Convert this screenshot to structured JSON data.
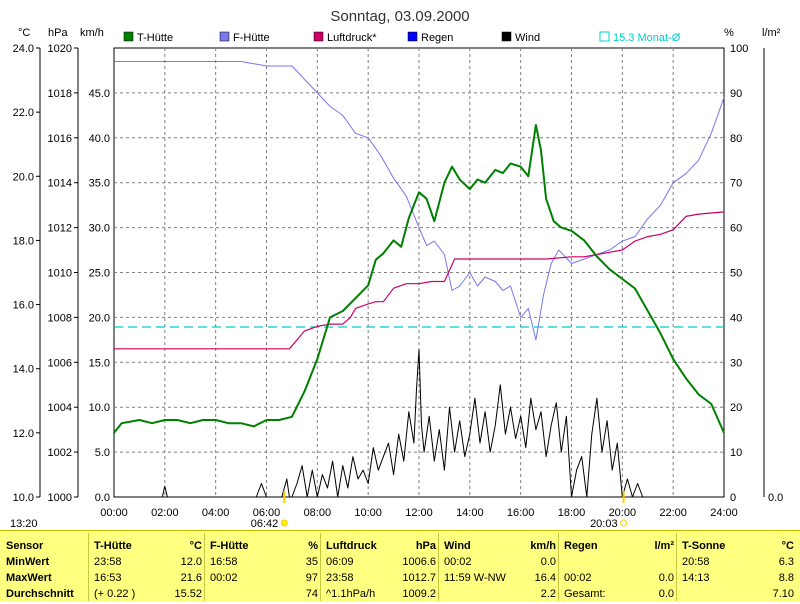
{
  "title": "Sonntag, 03.09.2000",
  "time_label": "13:20",
  "axis_units": {
    "temp": "°C",
    "pressure": "hPa",
    "wind": "km/h",
    "humidity": "%",
    "rain": "l/m²"
  },
  "legend": [
    {
      "label": "T-Hütte",
      "color": "#008000"
    },
    {
      "label": "F-Hütte",
      "color": "#7777ee"
    },
    {
      "label": "Luftdruck*",
      "color": "#cc0066"
    },
    {
      "label": "Regen",
      "color": "#0000ff"
    },
    {
      "label": "Wind",
      "color": "#000000"
    },
    {
      "label": "15.3 Monat-Ø",
      "color": "#00cccc"
    }
  ],
  "sun_events": [
    {
      "time": "06:42",
      "hour": 6.7
    },
    {
      "time": "20:03",
      "hour": 20.05
    }
  ],
  "chart_data": {
    "type": "line",
    "title": "Sonntag, 03.09.2000",
    "x_ticks": [
      "00:00",
      "02:00",
      "04:00",
      "06:00",
      "08:00",
      "10:00",
      "12:00",
      "14:00",
      "16:00",
      "18:00",
      "20:00",
      "22:00",
      "24:00"
    ],
    "xlim": [
      0,
      24
    ],
    "axes": {
      "temp_c": {
        "ticks": [
          "24.0",
          "22.0",
          "20.0",
          "18.0",
          "16.0",
          "14.0",
          "12.0",
          "10.0"
        ],
        "ylim": [
          10,
          24
        ]
      },
      "pressure_hpa": {
        "ticks": [
          "1020",
          "1018",
          "1016",
          "1014",
          "1012",
          "1010",
          "1008",
          "1006",
          "1004",
          "1002",
          "1000"
        ],
        "ylim": [
          1000,
          1020
        ]
      },
      "wind_kmh": {
        "ticks": [
          "45.0",
          "40.0",
          "35.0",
          "30.0",
          "25.0",
          "20.0",
          "15.0",
          "10.0",
          "5.0",
          "0.0"
        ],
        "ylim": [
          0,
          50
        ]
      },
      "humidity_pct": {
        "ticks": [
          "100",
          "90",
          "80",
          "70",
          "60",
          "50",
          "40",
          "30",
          "20",
          "10",
          "0"
        ],
        "ylim": [
          0,
          100
        ]
      },
      "rain_lm2": {
        "ticks": [
          "0.0"
        ],
        "ylim": [
          0,
          1
        ]
      }
    },
    "series": [
      {
        "name": "T-Hütte",
        "axis": "temp_c",
        "color": "#008000",
        "x": [
          0,
          0.3,
          1,
          1.5,
          2,
          2.5,
          3,
          3.5,
          4,
          4.5,
          5,
          5.5,
          6,
          6.5,
          7,
          7.5,
          8,
          8.5,
          9,
          9.5,
          10,
          10.3,
          10.6,
          11,
          11.3,
          11.6,
          12,
          12.3,
          12.6,
          13,
          13.3,
          13.6,
          14,
          14.3,
          14.6,
          15,
          15.3,
          15.6,
          16,
          16.3,
          16.6,
          16.8,
          17,
          17.3,
          17.6,
          18,
          18.5,
          19,
          19.5,
          20,
          20.5,
          21,
          21.5,
          22,
          22.5,
          23,
          23.5,
          24
        ],
        "y": [
          12.0,
          12.3,
          12.4,
          12.3,
          12.4,
          12.4,
          12.3,
          12.4,
          12.4,
          12.3,
          12.3,
          12.2,
          12.4,
          12.4,
          12.5,
          13.3,
          14.3,
          15.6,
          15.8,
          16.2,
          16.6,
          17.4,
          17.6,
          18.0,
          17.8,
          18.7,
          19.5,
          19.3,
          18.6,
          19.8,
          20.3,
          19.9,
          19.6,
          19.9,
          19.8,
          20.2,
          20.1,
          20.4,
          20.3,
          20.0,
          21.6,
          20.8,
          19.3,
          18.6,
          18.4,
          18.3,
          18.0,
          17.5,
          17.1,
          16.8,
          16.5,
          15.8,
          15.1,
          14.3,
          13.7,
          13.2,
          12.9,
          12.0
        ]
      },
      {
        "name": "F-Hütte",
        "axis": "humidity_pct",
        "color": "#7777ee",
        "x": [
          0,
          2,
          4,
          5,
          6,
          6.5,
          7,
          7.5,
          8,
          8.5,
          9,
          9.5,
          10,
          10.5,
          11,
          11.5,
          12,
          12.3,
          12.6,
          13,
          13.3,
          13.6,
          14,
          14.3,
          14.6,
          15,
          15.3,
          15.6,
          16,
          16.3,
          16.6,
          16.9,
          17.2,
          17.5,
          18,
          18.5,
          19,
          19.5,
          20,
          20.5,
          21,
          21.5,
          22,
          22.5,
          23,
          23.5,
          24
        ],
        "y": [
          97,
          97,
          97,
          97,
          96,
          96,
          96,
          93,
          90,
          87,
          85,
          81,
          80,
          76,
          71,
          67,
          60,
          56,
          57,
          54,
          46,
          47,
          50,
          47,
          49,
          48,
          46,
          47,
          40,
          42,
          35,
          45,
          52,
          55,
          52,
          53,
          54,
          55,
          57,
          58,
          62,
          65,
          70,
          72,
          75,
          81,
          89
        ]
      },
      {
        "name": "Luftdruck*",
        "axis": "pressure_hpa",
        "color": "#cc0066",
        "x": [
          0,
          1,
          3,
          5,
          6.9,
          7.2,
          7.5,
          8,
          8.5,
          9,
          9.3,
          9.5,
          10,
          10.3,
          10.6,
          11,
          11.5,
          12,
          12.5,
          13,
          13.2,
          13.4,
          14,
          15,
          16,
          17,
          18,
          18.5,
          19,
          19.5,
          20,
          20.5,
          21,
          21.5,
          22,
          22.5,
          23,
          24
        ],
        "y": [
          1006.6,
          1006.6,
          1006.6,
          1006.6,
          1006.6,
          1007.0,
          1007.4,
          1007.6,
          1007.7,
          1007.7,
          1008.0,
          1008.4,
          1008.6,
          1008.7,
          1008.7,
          1009.3,
          1009.5,
          1009.5,
          1009.6,
          1009.6,
          1010.1,
          1010.6,
          1010.6,
          1010.6,
          1010.6,
          1010.6,
          1010.7,
          1010.7,
          1010.8,
          1010.9,
          1011.0,
          1011.4,
          1011.6,
          1011.7,
          1011.9,
          1012.5,
          1012.6,
          1012.7
        ]
      },
      {
        "name": "Wind",
        "axis": "wind_kmh",
        "color": "#000000",
        "x": [
          0,
          1.9,
          2.0,
          2.1,
          5.6,
          5.8,
          6.0,
          6.2,
          6.6,
          6.8,
          6.9,
          7.0,
          7.2,
          7.4,
          7.6,
          7.8,
          8.0,
          8.2,
          8.4,
          8.6,
          8.8,
          9.0,
          9.2,
          9.4,
          9.6,
          9.8,
          10.0,
          10.2,
          10.4,
          10.6,
          10.8,
          11.0,
          11.2,
          11.4,
          11.6,
          11.8,
          11.9,
          12.0,
          12.1,
          12.2,
          12.4,
          12.6,
          12.8,
          13.0,
          13.2,
          13.4,
          13.6,
          13.8,
          14.0,
          14.2,
          14.4,
          14.6,
          14.8,
          15.0,
          15.2,
          15.4,
          15.6,
          15.8,
          16.0,
          16.2,
          16.4,
          16.6,
          16.8,
          17.0,
          17.2,
          17.4,
          17.6,
          17.8,
          18.0,
          18.2,
          18.4,
          18.6,
          18.8,
          19.0,
          19.2,
          19.4,
          19.6,
          19.8,
          20.0,
          20.2,
          20.4,
          20.6,
          20.8,
          24
        ],
        "y": [
          0,
          0,
          1.2,
          0,
          0,
          1.5,
          0,
          0,
          0,
          2.0,
          0,
          0,
          1.5,
          3.5,
          0,
          3.0,
          0,
          2.5,
          1.0,
          4.0,
          0,
          3.5,
          1.0,
          4.5,
          2.0,
          3.0,
          1.5,
          5.5,
          3.0,
          4.5,
          6.0,
          2.5,
          7.0,
          4.0,
          9.5,
          6.0,
          12.0,
          16.4,
          8.0,
          5.0,
          9.0,
          4.0,
          7.5,
          3.0,
          10.0,
          5.0,
          8.5,
          4.5,
          7.0,
          11.0,
          6.0,
          9.5,
          5.0,
          8.0,
          12.5,
          7.0,
          10.0,
          6.5,
          9.0,
          5.5,
          11.0,
          7.5,
          9.5,
          4.5,
          8.0,
          10.5,
          5.0,
          9.0,
          0,
          3.0,
          4.5,
          0,
          7.0,
          11.0,
          5.0,
          8.5,
          3.0,
          6.0,
          0,
          2.0,
          0,
          1.5,
          0,
          0
        ]
      }
    ],
    "reference_lines": [
      {
        "name": "15.3 Monat-Ø",
        "axis": "temp_c",
        "y": 15.3,
        "color": "#00cccc"
      }
    ]
  },
  "table": {
    "columns": [
      {
        "key": "sensor",
        "header": "Sensor",
        "unit": "",
        "rows": [
          "MinWert",
          "MaxWert",
          "Durchschnitt"
        ],
        "rows_bold": true
      },
      {
        "key": "t_huette",
        "header": "T-Hütte",
        "unit": "°C",
        "rows": [
          [
            "23:58",
            "12.0"
          ],
          [
            "16:53",
            "21.6"
          ],
          [
            "(+ 0.22 )",
            "15.52"
          ]
        ]
      },
      {
        "key": "f_huette",
        "header": "F-Hütte",
        "unit": "%",
        "rows": [
          [
            "16:58",
            "35"
          ],
          [
            "00:02",
            "97"
          ],
          [
            "",
            "74"
          ]
        ]
      },
      {
        "key": "luftdruck",
        "header": "Luftdruck",
        "unit": "hPa",
        "rows": [
          [
            "06:09",
            "1006.6"
          ],
          [
            "23:58",
            "1012.7"
          ],
          [
            "^1.1hPa/h",
            "1009.2"
          ]
        ]
      },
      {
        "key": "wind",
        "header": "Wind",
        "unit": "km/h",
        "rows": [
          [
            "00:02",
            "0.0"
          ],
          [
            "11:59  W-NW",
            "16.4"
          ],
          [
            "",
            "2.2"
          ]
        ]
      },
      {
        "key": "regen",
        "header": "Regen",
        "unit": "l/m²",
        "rows": [
          [
            "",
            ""
          ],
          [
            "00:02",
            "0.0"
          ],
          [
            "Gesamt:",
            "0.0"
          ]
        ]
      },
      {
        "key": "t_sonne",
        "header": "T-Sonne",
        "unit": "°C",
        "rows": [
          [
            "20:58",
            "6.3"
          ],
          [
            "14:13",
            "8.8"
          ],
          [
            "",
            "7.10"
          ]
        ]
      }
    ]
  }
}
